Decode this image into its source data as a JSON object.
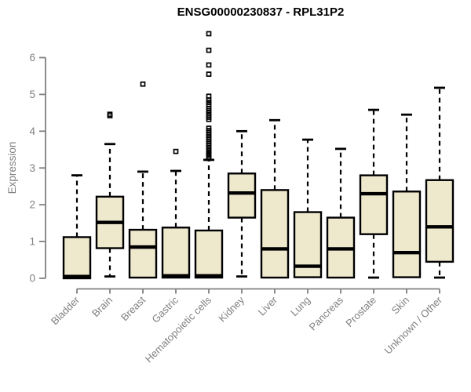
{
  "page": {
    "background": "#ffffff"
  },
  "chart_data": {
    "type": "box",
    "title": "ENSG00000230837 - RPL31P2",
    "ylabel": "Expression",
    "xlabel": "",
    "ylim": [
      0,
      6
    ],
    "yticks": [
      0,
      1,
      2,
      3,
      4,
      5,
      6
    ],
    "grid": false,
    "legend": "none",
    "colors": {
      "box_fill": "#EEE8CD",
      "box_border": "#000000",
      "median": "#000000",
      "whisker": "#000000",
      "axis": "#808080",
      "tick_label": "#808080",
      "title": "#000000"
    },
    "categories": [
      "Bladder",
      "Brain",
      "Breast",
      "Gastric",
      "Hematopoietic cells",
      "Kidney",
      "Liver",
      "Lung",
      "Pancreas",
      "Prostate",
      "Skin",
      "Unknown / Other"
    ],
    "series": [
      {
        "category": "Bladder",
        "whisker_low": 0,
        "q1": 0,
        "median": 0.05,
        "q3": 1.12,
        "whisker_high": 2.8,
        "outliers": []
      },
      {
        "category": "Brain",
        "whisker_low": 0.05,
        "q1": 0.82,
        "median": 1.52,
        "q3": 2.22,
        "whisker_high": 3.65,
        "outliers": [
          4.42,
          4.46
        ]
      },
      {
        "category": "Breast",
        "whisker_low": 0,
        "q1": 0.02,
        "median": 0.85,
        "q3": 1.32,
        "whisker_high": 2.9,
        "outliers": [
          5.28
        ]
      },
      {
        "category": "Gastric",
        "whisker_low": 0,
        "q1": 0.02,
        "median": 0.05,
        "q3": 1.38,
        "whisker_high": 2.92,
        "outliers": [
          3.45
        ]
      },
      {
        "category": "Hematopoietic cells",
        "whisker_low": 0,
        "q1": 0.02,
        "median": 0.05,
        "q3": 1.3,
        "whisker_high": 3.22,
        "outliers": [
          6.65,
          6.2,
          5.8,
          5.55,
          4.95,
          4.85,
          4.78,
          4.72,
          4.62,
          4.56,
          4.5,
          4.44,
          4.38,
          4.32,
          4.08,
          4.02,
          3.96,
          3.9,
          3.84,
          3.78,
          3.72,
          3.66,
          3.6,
          3.54,
          3.48,
          3.44,
          3.4,
          3.35,
          3.3,
          3.26
        ]
      },
      {
        "category": "Kidney",
        "whisker_low": 0.05,
        "q1": 1.65,
        "median": 2.32,
        "q3": 2.85,
        "whisker_high": 4.0,
        "outliers": []
      },
      {
        "category": "Liver",
        "whisker_low": 0,
        "q1": 0.02,
        "median": 0.8,
        "q3": 2.4,
        "whisker_high": 4.3,
        "outliers": []
      },
      {
        "category": "Lung",
        "whisker_low": 0,
        "q1": 0.03,
        "median": 0.33,
        "q3": 1.8,
        "whisker_high": 3.77,
        "outliers": []
      },
      {
        "category": "Pancreas",
        "whisker_low": 0,
        "q1": 0.02,
        "median": 0.8,
        "q3": 1.65,
        "whisker_high": 3.52,
        "outliers": []
      },
      {
        "category": "Prostate",
        "whisker_low": 0.02,
        "q1": 1.2,
        "median": 2.3,
        "q3": 2.8,
        "whisker_high": 4.58,
        "outliers": []
      },
      {
        "category": "Skin",
        "whisker_low": 0.02,
        "q1": 0.03,
        "median": 0.7,
        "q3": 2.36,
        "whisker_high": 4.45,
        "outliers": []
      },
      {
        "category": "Unknown / Other",
        "whisker_low": 0.02,
        "q1": 0.45,
        "median": 1.4,
        "q3": 2.67,
        "whisker_high": 5.18,
        "outliers": []
      }
    ]
  }
}
